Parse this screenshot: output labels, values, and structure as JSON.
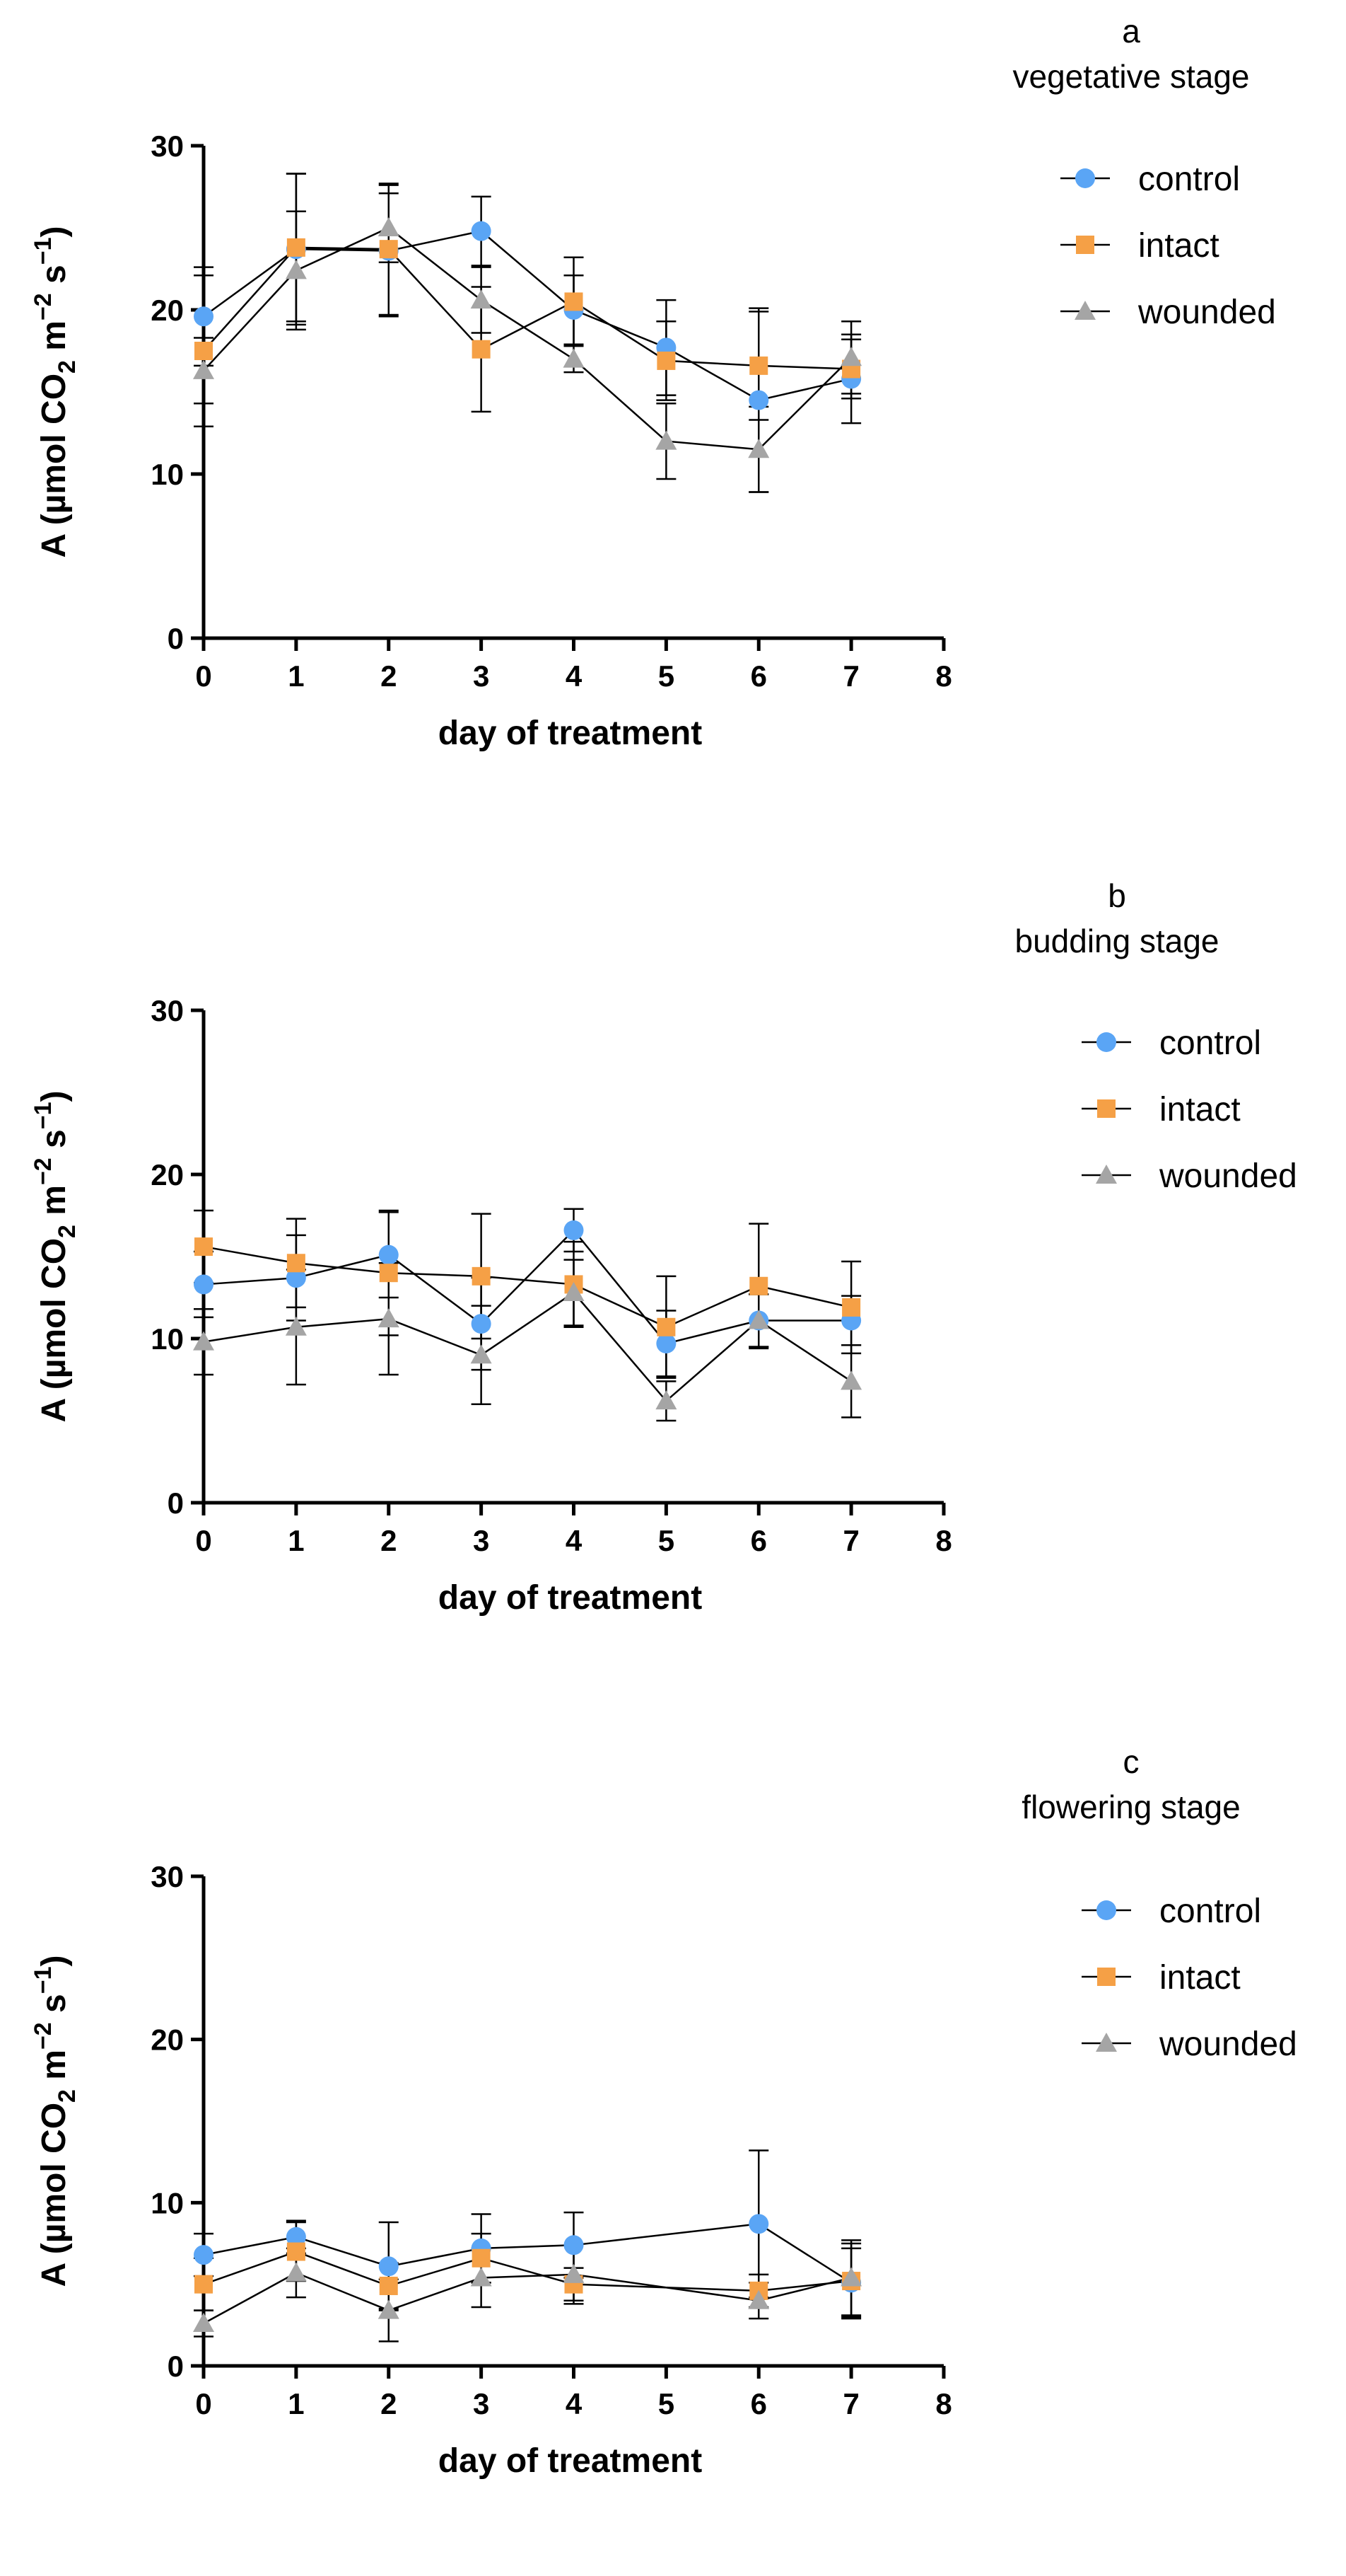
{
  "chart_data": [
    {
      "type": "line",
      "panel_letter": "a",
      "title": "vegetative stage",
      "xlabel": "day of treatment",
      "ylabel": "A (µmol CO₂ m⁻² s⁻¹)",
      "xlim": [
        0,
        8
      ],
      "ylim": [
        0,
        30
      ],
      "xticks": [
        0,
        1,
        2,
        3,
        4,
        5,
        6,
        7,
        8
      ],
      "yticks": [
        0,
        10,
        20,
        30
      ],
      "legend_position": "top-right",
      "series": [
        {
          "name": "control",
          "color": "#5aa5f5",
          "marker": "circle",
          "x": [
            0,
            1,
            2,
            3,
            4,
            5,
            6,
            7
          ],
          "y": [
            19.6,
            23.7,
            23.6,
            24.8,
            20.0,
            17.7,
            14.5,
            15.8
          ],
          "err": [
            3.0,
            4.6,
            4.0,
            2.1,
            2.1,
            2.9,
            5.6,
            2.7
          ]
        },
        {
          "name": "intact",
          "color": "#f5a046",
          "marker": "square",
          "x": [
            0,
            1,
            2,
            3,
            4,
            5,
            6,
            7
          ],
          "y": [
            17.5,
            23.8,
            23.7,
            17.6,
            20.5,
            16.9,
            16.6,
            16.4
          ],
          "err": [
            4.6,
            4.5,
            4.0,
            3.8,
            2.7,
            2.4,
            3.3,
            1.8
          ]
        },
        {
          "name": "wounded",
          "color": "#a5a5a5",
          "marker": "triangle",
          "x": [
            0,
            1,
            2,
            3,
            4,
            5,
            6,
            7
          ],
          "y": [
            16.3,
            22.4,
            25.0,
            20.6,
            17.0,
            12.0,
            11.5,
            17.1
          ],
          "err": [
            2.0,
            3.6,
            2.1,
            2.0,
            0.8,
            2.3,
            2.6,
            2.2
          ]
        }
      ]
    },
    {
      "type": "line",
      "panel_letter": "b",
      "title": "budding stage",
      "xlabel": "day of treatment",
      "ylabel": "A (µmol CO₂ m⁻² s⁻¹)",
      "xlim": [
        0,
        8
      ],
      "ylim": [
        0,
        30
      ],
      "xticks": [
        0,
        1,
        2,
        3,
        4,
        5,
        6,
        7,
        8
      ],
      "yticks": [
        0,
        10,
        20,
        30
      ],
      "legend_position": "top-right",
      "series": [
        {
          "name": "control",
          "color": "#5aa5f5",
          "marker": "circle",
          "x": [
            0,
            1,
            2,
            3,
            4,
            5,
            6,
            7
          ],
          "y": [
            13.3,
            13.7,
            15.1,
            10.9,
            16.6,
            9.7,
            11.1,
            11.1
          ],
          "err": [
            2.0,
            2.6,
            2.6,
            2.8,
            1.3,
            2.0,
            1.6,
            1.5
          ]
        },
        {
          "name": "intact",
          "color": "#f5a046",
          "marker": "square",
          "x": [
            0,
            1,
            2,
            3,
            4,
            5,
            6,
            7
          ],
          "y": [
            15.6,
            14.6,
            14.0,
            13.8,
            13.3,
            10.7,
            13.2,
            11.9
          ],
          "err": [
            2.2,
            2.7,
            3.8,
            3.8,
            2.6,
            3.1,
            3.8,
            2.8
          ]
        },
        {
          "name": "wounded",
          "color": "#a5a5a5",
          "marker": "triangle",
          "x": [
            0,
            1,
            2,
            3,
            4,
            5,
            6,
            7
          ],
          "y": [
            9.8,
            10.7,
            11.2,
            9.0,
            12.8,
            6.2,
            11.1,
            7.4
          ],
          "err": [
            2.0,
            3.5,
            3.4,
            3.0,
            2.0,
            1.2,
            1.6,
            2.2
          ]
        }
      ]
    },
    {
      "type": "line",
      "panel_letter": "c",
      "title": "flowering stage",
      "xlabel": "day of treatment",
      "ylabel": "A (µmol CO₂ m⁻² s⁻¹)",
      "xlim": [
        0,
        8
      ],
      "ylim": [
        0,
        30
      ],
      "xticks": [
        0,
        1,
        2,
        3,
        4,
        5,
        6,
        7,
        8
      ],
      "yticks": [
        0,
        10,
        20,
        30
      ],
      "legend_position": "top-right",
      "series": [
        {
          "name": "control",
          "color": "#5aa5f5",
          "marker": "circle",
          "x": [
            0,
            1,
            2,
            3,
            4,
            6,
            7
          ],
          "y": [
            6.8,
            7.9,
            6.1,
            7.2,
            7.4,
            8.7,
            5.1
          ],
          "err": [
            1.3,
            1.0,
            2.7,
            2.1,
            2.0,
            4.5,
            2.1
          ]
        },
        {
          "name": "intact",
          "color": "#f5a046",
          "marker": "square",
          "x": [
            0,
            1,
            2,
            3,
            4,
            6,
            7
          ],
          "y": [
            5.0,
            7.0,
            4.9,
            6.6,
            5.0,
            4.6,
            5.2
          ],
          "err": [
            1.6,
            1.8,
            1.4,
            1.5,
            1.0,
            1.0,
            2.3
          ]
        },
        {
          "name": "wounded",
          "color": "#a5a5a5",
          "marker": "triangle",
          "x": [
            0,
            1,
            2,
            3,
            4,
            6,
            7
          ],
          "y": [
            2.6,
            5.7,
            3.4,
            5.4,
            5.6,
            4.0,
            5.4
          ],
          "err": [
            0.8,
            1.5,
            1.9,
            1.8,
            1.8,
            1.1,
            2.3
          ]
        }
      ]
    }
  ]
}
